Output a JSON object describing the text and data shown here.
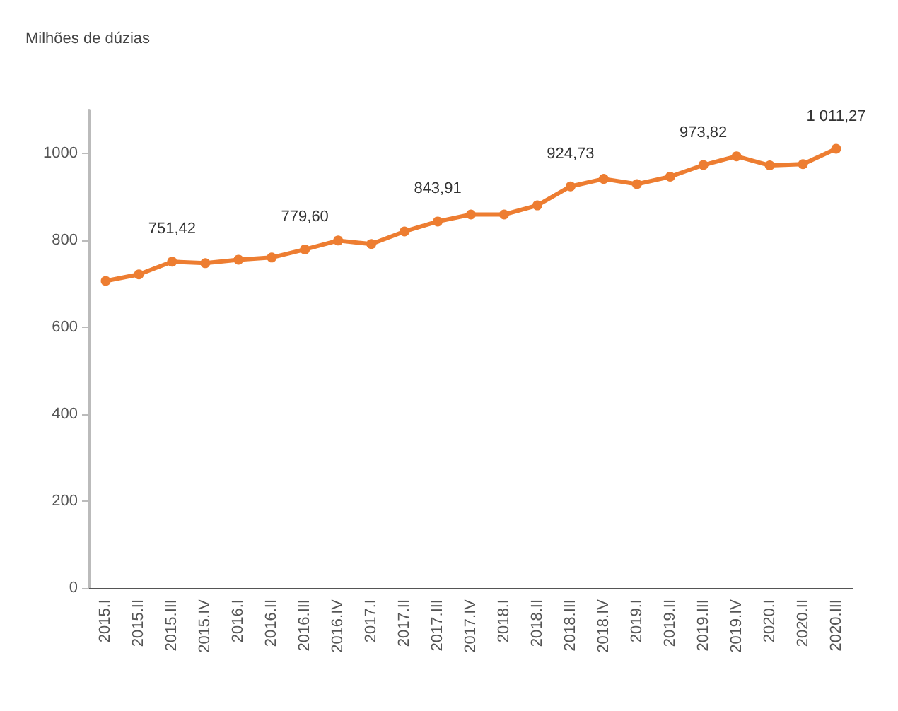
{
  "chart_data": {
    "type": "line",
    "ylabel": "Milhões de dúzias",
    "categories": [
      "2015.I",
      "2015.II",
      "2015.III",
      "2015.IV",
      "2016.I",
      "2016.II",
      "2016.III",
      "2016.IV",
      "2017.I",
      "2017.II",
      "2017.III",
      "2017.IV",
      "2018.I",
      "2018.II",
      "2018.III",
      "2018.IV",
      "2019.I",
      "2019.II",
      "2019.III",
      "2019.IV",
      "2020.I",
      "2020.II",
      "2020.III"
    ],
    "series": [
      {
        "color": "#ed7d31",
        "values": [
          707,
          722,
          751.42,
          748,
          756,
          761,
          779.6,
          800,
          792,
          821,
          843.91,
          860,
          860,
          881,
          924.73,
          942,
          930,
          947,
          973.82,
          994,
          973,
          976,
          1011.27
        ],
        "value_labels": [
          null,
          null,
          "751,42",
          null,
          null,
          null,
          "779,60",
          null,
          null,
          null,
          "843,91",
          null,
          null,
          null,
          "924,73",
          null,
          null,
          null,
          "973,82",
          null,
          null,
          null,
          "1 011,27"
        ]
      }
    ],
    "ylim": [
      0,
      1100
    ],
    "yticks": [
      0,
      200,
      400,
      600,
      800,
      1000
    ],
    "marker": "circle",
    "line_style": "solid"
  }
}
